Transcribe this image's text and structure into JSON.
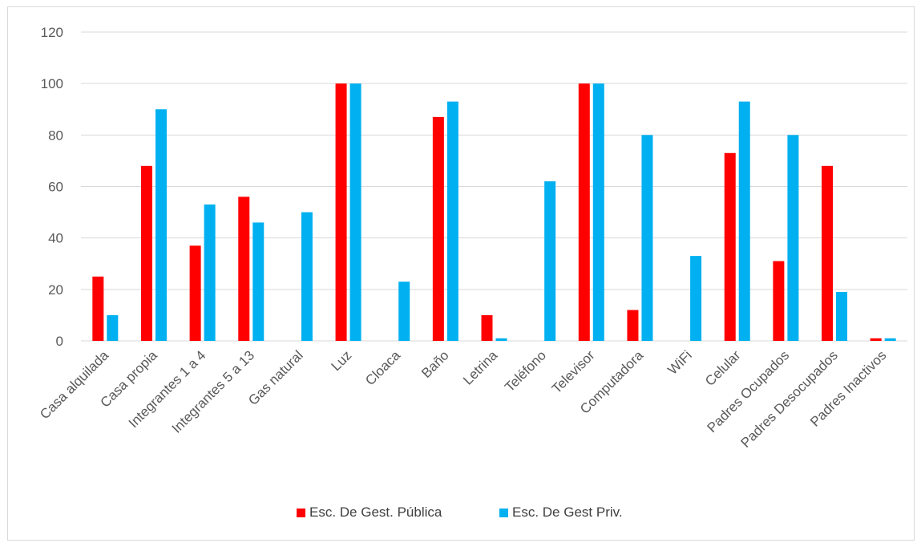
{
  "chart_data": {
    "type": "bar",
    "title": "",
    "xlabel": "",
    "ylabel": "",
    "ylim": [
      0,
      120
    ],
    "yticks": [
      0,
      20,
      40,
      60,
      80,
      100,
      120
    ],
    "grid": true,
    "legend_position": "bottom",
    "categories": [
      "Casa alquilada",
      "Casa propia",
      "Integrantes 1 a 4",
      "Integrantes 5 a 13",
      "Gas natural",
      "Luz",
      "Cloaca",
      "Baño",
      "Letrina",
      "Teléfono",
      "Televisor",
      "Computadora",
      "WiFi",
      "Celular",
      "Padres Ocupados",
      "Padres Desocupados",
      "Padres Inactivos"
    ],
    "series": [
      {
        "name": "Esc. De Gest. Pública",
        "color": "#ff0000",
        "values": [
          25,
          68,
          37,
          56,
          0,
          100,
          0,
          87,
          10,
          0,
          100,
          12,
          0,
          73,
          31,
          68,
          1
        ]
      },
      {
        "name": "Esc. De Gest Priv.",
        "color": "#00b0f0",
        "values": [
          10,
          90,
          53,
          46,
          50,
          100,
          23,
          93,
          1,
          62,
          100,
          80,
          33,
          93,
          80,
          19,
          1
        ]
      }
    ]
  }
}
